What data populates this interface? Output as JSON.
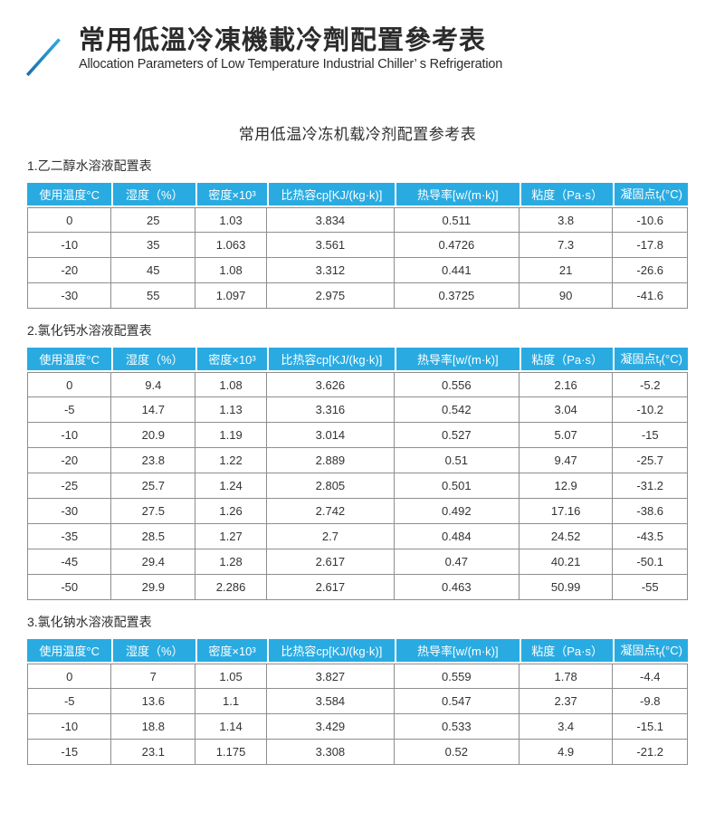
{
  "header": {
    "title": "常用低溫冷凍機載冷劑配置參考表",
    "subtitle": "Allocation Parameters of Low Temperature Industrial Chiller’ s Refrigeration",
    "icon": "arrow-up-right-logo"
  },
  "inner_title": "常用低温冷冻机载冷剂配置参考表",
  "colors": {
    "accent_blue": "#29abe2",
    "icon_blue_dark": "#1b6fad",
    "icon_blue_light": "#2fa9de",
    "grid_border": "#8e8e8e",
    "body_text": "#333333",
    "header_text": "#ffffff"
  },
  "table_headers": [
    {
      "pre": "使用温度°C"
    },
    {
      "pre": "湿度（%）"
    },
    {
      "pre": "密度×10³"
    },
    {
      "pre": "比热容cp[KJ/(kg·k)]"
    },
    {
      "pre": "热导率[w/(m·k)]"
    },
    {
      "pre": "粘度（Pa·s）"
    },
    {
      "pre": "凝固点t",
      "sub": "f",
      "post": "(°C)"
    }
  ],
  "sections": [
    {
      "label": "1.乙二醇水溶液配置表",
      "rows": [
        [
          "0",
          "25",
          "1.03",
          "3.834",
          "0.511",
          "3.8",
          "-10.6"
        ],
        [
          "-10",
          "35",
          "1.063",
          "3.561",
          "0.4726",
          "7.3",
          "-17.8"
        ],
        [
          "-20",
          "45",
          "1.08",
          "3.312",
          "0.441",
          "21",
          "-26.6"
        ],
        [
          "-30",
          "55",
          "1.097",
          "2.975",
          "0.3725",
          "90",
          "-41.6"
        ]
      ]
    },
    {
      "label": "2.氯化钙水溶液配置表",
      "rows": [
        [
          "0",
          "9.4",
          "1.08",
          "3.626",
          "0.556",
          "2.16",
          "-5.2"
        ],
        [
          "-5",
          "14.7",
          "1.13",
          "3.316",
          "0.542",
          "3.04",
          "-10.2"
        ],
        [
          "-10",
          "20.9",
          "1.19",
          "3.014",
          "0.527",
          "5.07",
          "-15"
        ],
        [
          "-20",
          "23.8",
          "1.22",
          "2.889",
          "0.51",
          "9.47",
          "-25.7"
        ],
        [
          "-25",
          "25.7",
          "1.24",
          "2.805",
          "0.501",
          "12.9",
          "-31.2"
        ],
        [
          "-30",
          "27.5",
          "1.26",
          "2.742",
          "0.492",
          "17.16",
          "-38.6"
        ],
        [
          "-35",
          "28.5",
          "1.27",
          "2.7",
          "0.484",
          "24.52",
          "-43.5"
        ],
        [
          "-45",
          "29.4",
          "1.28",
          "2.617",
          "0.47",
          "40.21",
          "-50.1"
        ],
        [
          "-50",
          "29.9",
          "2.286",
          "2.617",
          "0.463",
          "50.99",
          "-55"
        ]
      ]
    },
    {
      "label": "3.氯化钠水溶液配置表",
      "rows": [
        [
          "0",
          "7",
          "1.05",
          "3.827",
          "0.559",
          "1.78",
          "-4.4"
        ],
        [
          "-5",
          "13.6",
          "1.1",
          "3.584",
          "0.547",
          "2.37",
          "-9.8"
        ],
        [
          "-10",
          "18.8",
          "1.14",
          "3.429",
          "0.533",
          "3.4",
          "-15.1"
        ],
        [
          "-15",
          "23.1",
          "1.175",
          "3.308",
          "0.52",
          "4.9",
          "-21.2"
        ]
      ]
    }
  ]
}
